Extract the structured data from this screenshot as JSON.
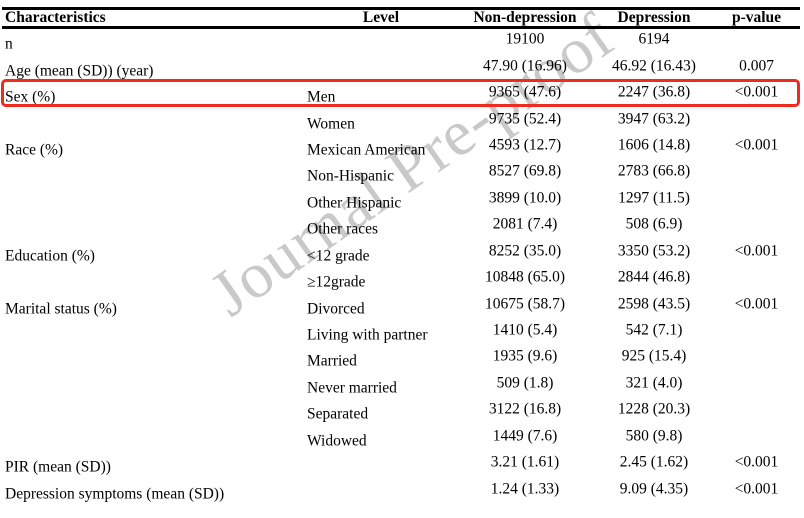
{
  "watermark": "Journal Pre-proof",
  "colors": {
    "highlight_box": "#ee2b1e",
    "watermark": "#c9c9c9",
    "text": "#000000",
    "rules": "#000000"
  },
  "table": {
    "headers": {
      "characteristics": "Characteristics",
      "level": "Level",
      "non_depression": "Non-depression",
      "depression": "Depression",
      "p_value": "p-value"
    },
    "rows": [
      {
        "characteristic": "n",
        "level": "",
        "non_depression": "19100",
        "depression": "6194",
        "p_value": "",
        "highlighted": false
      },
      {
        "characteristic": "Age (mean (SD)) (year)",
        "level": "",
        "non_depression": "47.90 (16.96)",
        "depression": "46.92 (16.43)",
        "p_value": "0.007",
        "highlighted": false
      },
      {
        "characteristic": "Sex (%)",
        "level": "Men",
        "non_depression": "9365 (47.6)",
        "depression": "2247 (36.8)",
        "p_value": "<0.001",
        "highlighted": true
      },
      {
        "characteristic": "",
        "level": "Women",
        "non_depression": "9735 (52.4)",
        "depression": "3947 (63.2)",
        "p_value": "",
        "highlighted": false
      },
      {
        "characteristic": "Race (%)",
        "level": "Mexican American",
        "non_depression": "4593 (12.7)",
        "depression": "1606 (14.8)",
        "p_value": "<0.001",
        "highlighted": false
      },
      {
        "characteristic": "",
        "level": "Non-Hispanic",
        "non_depression": "8527 (69.8)",
        "depression": "2783 (66.8)",
        "p_value": "",
        "highlighted": false
      },
      {
        "characteristic": "",
        "level": "Other Hispanic",
        "non_depression": "3899 (10.0)",
        "depression": "1297 (11.5)",
        "p_value": "",
        "highlighted": false
      },
      {
        "characteristic": "",
        "level": "Other races",
        "non_depression": "2081 (7.4)",
        "depression": "508 (6.9)",
        "p_value": "",
        "highlighted": false
      },
      {
        "characteristic": "Education (%)",
        "level": "<12 grade",
        "non_depression": "8252 (35.0)",
        "depression": "3350 (53.2)",
        "p_value": "<0.001",
        "highlighted": false
      },
      {
        "characteristic": "",
        "level": "≥12grade",
        "non_depression": "10848 (65.0)",
        "depression": "2844 (46.8)",
        "p_value": "",
        "highlighted": false
      },
      {
        "characteristic": "Marital status (%)",
        "level": "Divorced",
        "non_depression": "10675 (58.7)",
        "depression": "2598 (43.5)",
        "p_value": "<0.001",
        "highlighted": false
      },
      {
        "characteristic": "",
        "level": "Living with partner",
        "non_depression": "1410 (5.4)",
        "depression": "542 (7.1)",
        "p_value": "",
        "highlighted": false
      },
      {
        "characteristic": "",
        "level": "Married",
        "non_depression": "1935 (9.6)",
        "depression": "925 (15.4)",
        "p_value": "",
        "highlighted": false
      },
      {
        "characteristic": "",
        "level": "Never married",
        "non_depression": "509 (1.8)",
        "depression": "321 (4.0)",
        "p_value": "",
        "highlighted": false
      },
      {
        "characteristic": "",
        "level": "Separated",
        "non_depression": "3122 (16.8)",
        "depression": "1228 (20.3)",
        "p_value": "",
        "highlighted": false
      },
      {
        "characteristic": "",
        "level": "Widowed",
        "non_depression": "1449 (7.6)",
        "depression": "580 (9.8)",
        "p_value": "",
        "highlighted": false
      },
      {
        "characteristic": "PIR (mean (SD))",
        "level": "",
        "non_depression": "3.21 (1.61)",
        "depression": "2.45 (1.62)",
        "p_value": "<0.001",
        "highlighted": false
      },
      {
        "characteristic": "Depression symptoms (mean (SD))",
        "level": "",
        "non_depression": "1.24 (1.33)",
        "depression": "9.09 (4.35)",
        "p_value": "<0.001",
        "highlighted": false
      }
    ]
  }
}
